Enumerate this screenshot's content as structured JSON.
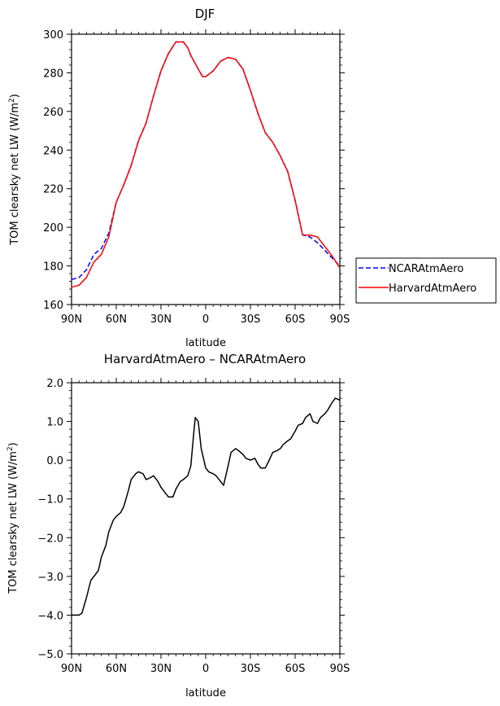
{
  "chart_data": [
    {
      "type": "line",
      "title": "DJF",
      "xlabel": "latitude",
      "ylabel": "TOM clearsky net LW (W/m²)",
      "ylabel_main": "TOM clearsky net LW (W/m",
      "ylabel_sup": "2",
      "ylabel_close": ")",
      "xlim": [
        90,
        -90
      ],
      "ylim": [
        160,
        300
      ],
      "x_ticks": [
        90,
        60,
        30,
        0,
        -30,
        -60,
        -90
      ],
      "x_tick_labels": [
        "90N",
        "60N",
        "30N",
        "0",
        "30S",
        "60S",
        "90S"
      ],
      "y_ticks": [
        160,
        180,
        200,
        220,
        240,
        260,
        280,
        300
      ],
      "y_tick_labels": [
        "160",
        "180",
        "200",
        "220",
        "240",
        "260",
        "280",
        "300"
      ],
      "legend_position": "right",
      "x": [
        90,
        85,
        80,
        75,
        70,
        65,
        60,
        55,
        50,
        45,
        40,
        35,
        30,
        25,
        20,
        15,
        12,
        10,
        5,
        2,
        0,
        -5,
        -10,
        -15,
        -20,
        -25,
        -30,
        -35,
        -40,
        -45,
        -50,
        -55,
        -60,
        -65,
        -70,
        -75,
        -80,
        -85,
        -90
      ],
      "series": [
        {
          "name": "NCARAtmAero",
          "color": "#0000ff",
          "dash": "dashed",
          "values": [
            173,
            174,
            178,
            186,
            189,
            197,
            213,
            222,
            232,
            245,
            254,
            268,
            281,
            290,
            296,
            296,
            293,
            289,
            282,
            278,
            278,
            281,
            286,
            288,
            287,
            282,
            271,
            259,
            249,
            244,
            237,
            229,
            214,
            196,
            195,
            192,
            188,
            184,
            180
          ]
        },
        {
          "name": "HarvardAtmAero",
          "color": "#ff0000",
          "dash": "solid",
          "values": [
            169,
            170,
            174,
            182,
            186,
            195,
            213,
            222,
            232,
            245,
            254,
            268,
            281,
            290,
            296,
            296,
            293,
            289,
            282,
            278,
            278,
            281,
            286,
            288,
            287,
            282,
            271,
            259,
            249,
            244,
            237,
            229,
            214,
            196,
            196,
            195,
            190,
            185,
            179
          ]
        }
      ]
    },
    {
      "type": "line",
      "title": "HarvardAtmAero – NCARAtmAero",
      "xlabel": "latitude",
      "ylabel": "TOM clearsky net LW (W/m²)",
      "ylabel_main": "TOM clearsky net LW (W/m",
      "ylabel_sup": "2",
      "ylabel_close": ")",
      "xlim": [
        90,
        -90
      ],
      "ylim": [
        -5.0,
        2.0
      ],
      "x_ticks": [
        90,
        60,
        30,
        0,
        -30,
        -60,
        -90
      ],
      "x_tick_labels": [
        "90N",
        "60N",
        "30N",
        "0",
        "30S",
        "60S",
        "90S"
      ],
      "y_ticks": [
        -5.0,
        -4.0,
        -3.0,
        -2.0,
        -1.0,
        0.0,
        1.0,
        2.0
      ],
      "y_tick_labels": [
        "−5.0",
        "−4.0",
        "−3.0",
        "−2.0",
        "−1.0",
        "0.0",
        "1.0",
        "2.0"
      ],
      "x": [
        90,
        87,
        85,
        83,
        80,
        77,
        75,
        72,
        70,
        67,
        65,
        62,
        60,
        57,
        55,
        52,
        50,
        47,
        45,
        42,
        40,
        37,
        35,
        32,
        30,
        27,
        25,
        22,
        20,
        17,
        15,
        12,
        10,
        8,
        7,
        5,
        3,
        0,
        -2,
        -5,
        -7,
        -10,
        -12,
        -15,
        -17,
        -20,
        -22,
        -25,
        -27,
        -30,
        -33,
        -35,
        -37,
        -40,
        -42,
        -45,
        -48,
        -50,
        -52,
        -55,
        -57,
        -60,
        -62,
        -65,
        -67,
        -70,
        -72,
        -75,
        -77,
        -80,
        -82,
        -85,
        -87,
        -90
      ],
      "series": [
        {
          "color": "#000000",
          "dash": "solid",
          "values": [
            -4.0,
            -4.0,
            -4.0,
            -3.95,
            -3.55,
            -3.1,
            -3.0,
            -2.85,
            -2.5,
            -2.2,
            -1.85,
            -1.55,
            -1.45,
            -1.35,
            -1.2,
            -0.8,
            -0.5,
            -0.35,
            -0.3,
            -0.35,
            -0.5,
            -0.45,
            -0.4,
            -0.55,
            -0.7,
            -0.85,
            -0.95,
            -0.95,
            -0.75,
            -0.55,
            -0.5,
            -0.4,
            -0.15,
            0.7,
            1.1,
            1.0,
            0.3,
            -0.2,
            -0.3,
            -0.35,
            -0.4,
            -0.55,
            -0.65,
            -0.15,
            0.2,
            0.3,
            0.25,
            0.15,
            0.05,
            0.0,
            0.05,
            -0.1,
            -0.2,
            -0.2,
            -0.05,
            0.2,
            0.25,
            0.3,
            0.4,
            0.5,
            0.55,
            0.75,
            0.9,
            0.95,
            1.1,
            1.2,
            1.0,
            0.95,
            1.1,
            1.2,
            1.3,
            1.5,
            1.6,
            1.55
          ]
        }
      ]
    }
  ]
}
